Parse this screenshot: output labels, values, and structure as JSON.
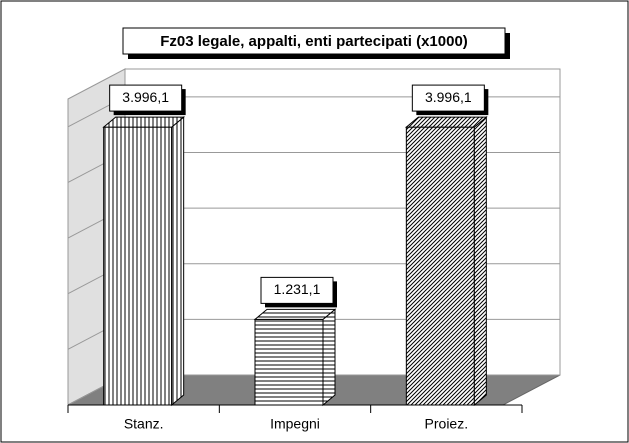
{
  "chart_data": {
    "type": "bar3d",
    "title": "Fz03 legale, appalti, enti partecipati (x1000)",
    "categories": [
      "Stanz.",
      "Impegni",
      "Proiez."
    ],
    "values": [
      3996.1,
      1231.1,
      3996.1
    ],
    "value_labels": [
      "3.996,1",
      "1.231,1",
      "3.996,1"
    ],
    "ylim": [
      0,
      4400
    ],
    "yticks": [
      0,
      800,
      1600,
      2400,
      3200,
      4000
    ],
    "grid": true
  }
}
